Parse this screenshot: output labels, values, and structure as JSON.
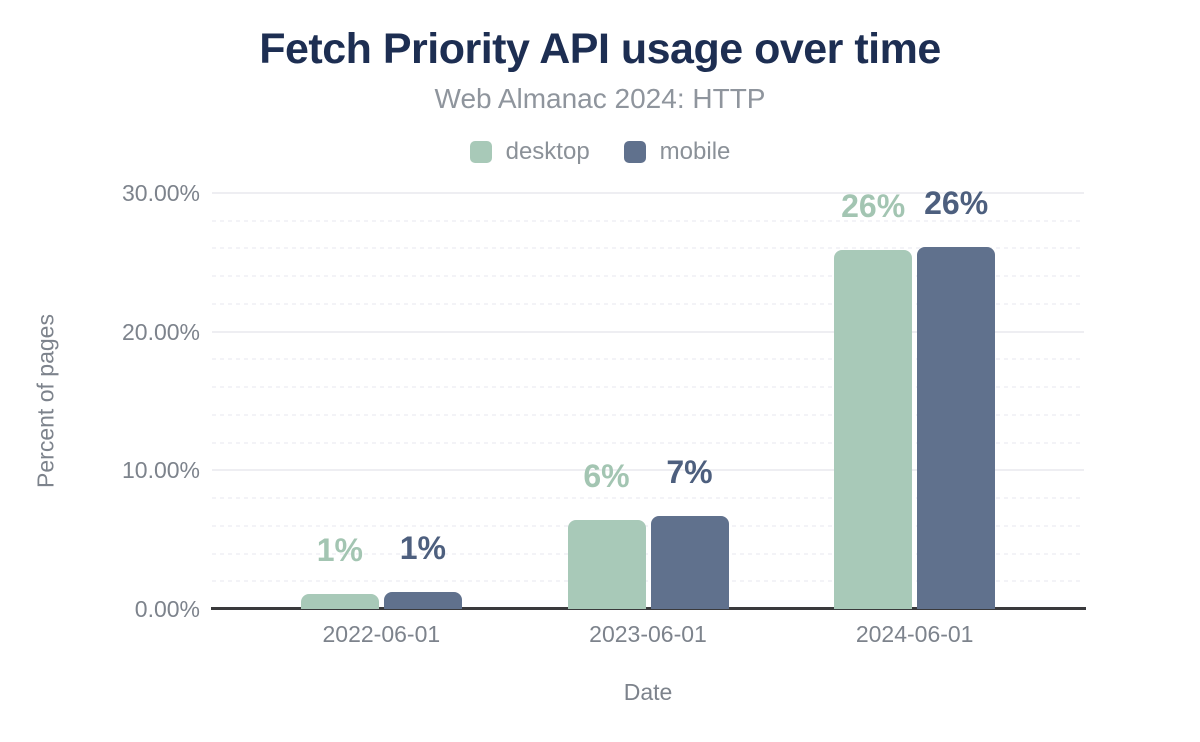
{
  "chart_data": {
    "type": "bar",
    "title": "Fetch Priority API usage over time",
    "subtitle": "Web Almanac 2024: HTTP",
    "xlabel": "Date",
    "ylabel": "Percent of pages",
    "categories": [
      "2022-06-01",
      "2023-06-01",
      "2024-06-01"
    ],
    "series": [
      {
        "name": "desktop",
        "color": "#a8c9b8",
        "label_color": "#a3c5b2",
        "values": [
          1.1,
          6.4,
          25.9
        ],
        "labels": [
          "1%",
          "6%",
          "26%"
        ]
      },
      {
        "name": "mobile",
        "color": "#60718d",
        "label_color": "#4d5f7e",
        "values": [
          1.2,
          6.7,
          26.1
        ],
        "labels": [
          "1%",
          "7%",
          "26%"
        ]
      }
    ],
    "ylim": [
      0,
      30
    ],
    "yticks": [
      {
        "value": 0,
        "label": "0.00%"
      },
      {
        "value": 10,
        "label": "10.00%"
      },
      {
        "value": 20,
        "label": "20.00%"
      },
      {
        "value": 30,
        "label": "30.00%"
      }
    ],
    "minor_tick_step": 2,
    "grid": true,
    "legend_position": "top",
    "colors": {
      "title": "#1d2e52",
      "subtitle": "#8f959d",
      "legend_text": "#8b9198",
      "axis_text": "#7d838c",
      "axis_line": "#3a3a3c",
      "grid_major": "#eeeef2",
      "grid_minor": "#f3f3f7",
      "background": "#ffffff"
    }
  }
}
